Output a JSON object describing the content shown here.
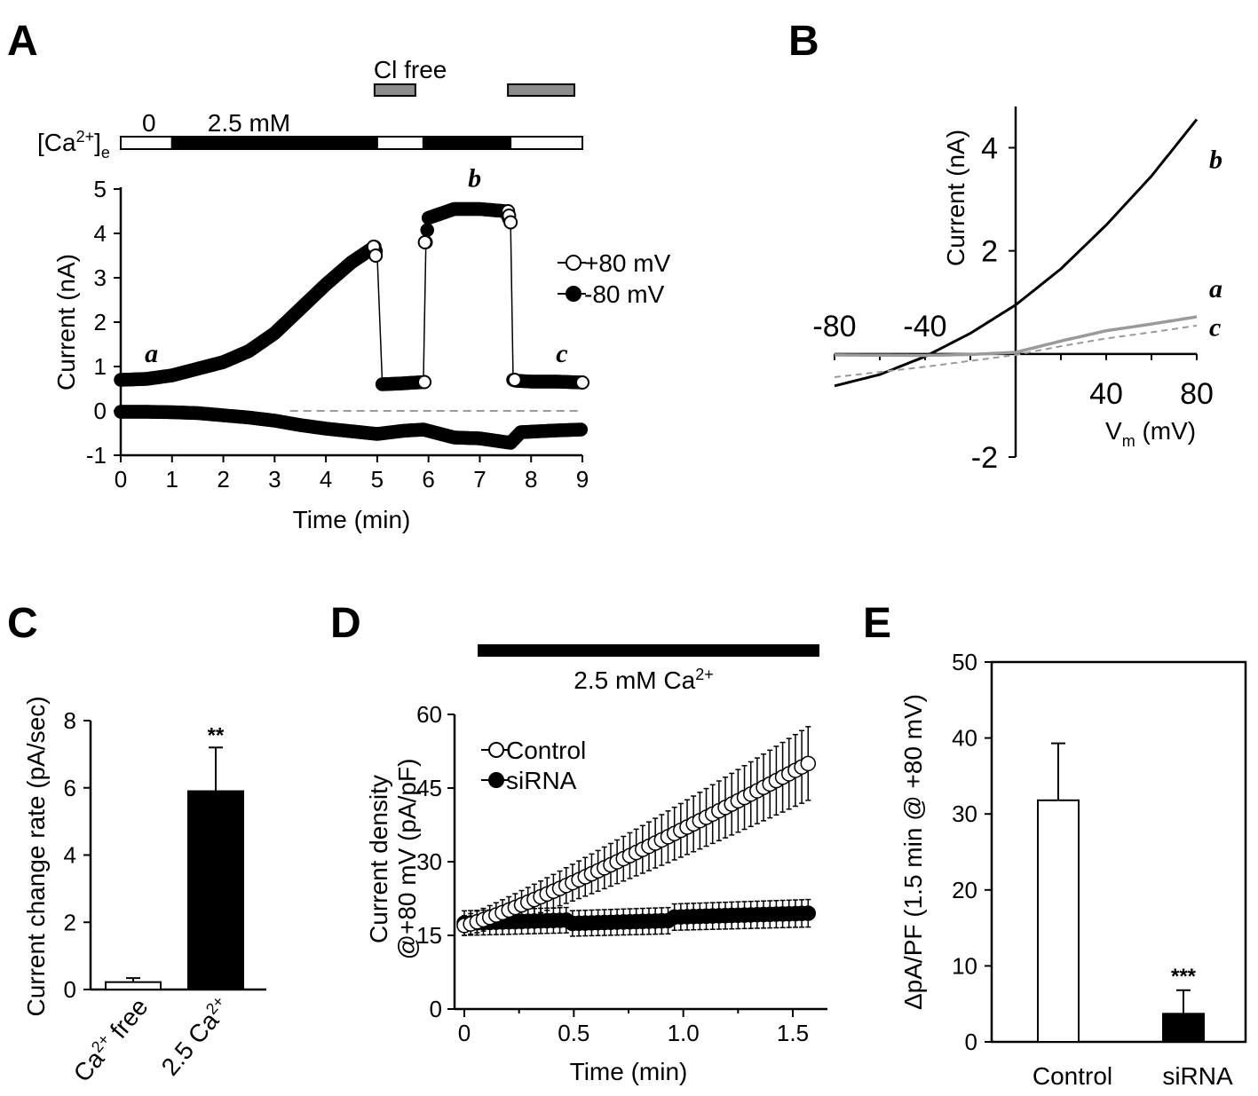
{
  "colors": {
    "open_marker": "#ffffff",
    "filled_marker": "#000000",
    "gray_trace": "#9a9a9a",
    "gray_bar": "#8c8c8c"
  },
  "panel_labels": {
    "a": "A",
    "b": "B",
    "c": "C",
    "d": "D",
    "e": "E"
  },
  "chart_data": [
    {
      "panel": "A",
      "type": "scatter",
      "xlabel": "Time (min)",
      "ylabel": "Current (nA)",
      "xlim": [
        0,
        9
      ],
      "ylim": [
        -1,
        5
      ],
      "xticks": [
        "0",
        "1",
        "2",
        "3",
        "4",
        "5",
        "6",
        "7",
        "8",
        "9"
      ],
      "yticks": [
        "-1",
        "0",
        "1",
        "2",
        "3",
        "4",
        "5"
      ],
      "protocol": {
        "ca_label": "[Ca2+]e",
        "ca_label_main": "[Ca",
        "ca_label_sup": "2+",
        "ca_label_close": "]",
        "ca_label_sub": "e",
        "ca_segments": [
          {
            "label": "0",
            "start": 0,
            "end": 1.0,
            "filled": false
          },
          {
            "label": "2.5 mM",
            "start": 1.0,
            "end": 5.0,
            "filled": true
          },
          {
            "label": "",
            "start": 5.0,
            "end": 5.9,
            "filled": false
          },
          {
            "label": "",
            "start": 5.9,
            "end": 7.6,
            "filled": true
          },
          {
            "label": "",
            "start": 7.6,
            "end": 9.0,
            "filled": false
          }
        ],
        "cl_label": "Cl  free",
        "cl_segments": [
          {
            "start": 5.0,
            "end": 5.9
          },
          {
            "start": 7.6,
            "end": 9.0
          }
        ]
      },
      "series": [
        {
          "name": "+80 mV",
          "marker": "open",
          "x": [
            0.0,
            0.5,
            1.0,
            1.5,
            2.0,
            2.5,
            3.0,
            3.5,
            4.0,
            4.5,
            4.95,
            5.0,
            5.1,
            5.5,
            5.9,
            5.95,
            6.0,
            6.5,
            7.0,
            7.5,
            7.6,
            7.65,
            7.7,
            8.0,
            8.5,
            9.0
          ],
          "y": [
            0.7,
            0.72,
            0.8,
            0.95,
            1.1,
            1.35,
            1.75,
            2.3,
            2.85,
            3.35,
            3.7,
            3.5,
            0.6,
            0.62,
            0.65,
            3.8,
            4.35,
            4.55,
            4.55,
            4.5,
            4.25,
            0.7,
            0.68,
            0.66,
            0.66,
            0.64
          ]
        },
        {
          "name": "-80 mV",
          "marker": "filled",
          "x": [
            0.0,
            0.5,
            1.0,
            1.5,
            2.0,
            2.5,
            3.0,
            3.5,
            4.0,
            4.5,
            5.0,
            5.5,
            5.9,
            6.5,
            7.0,
            7.6,
            7.8,
            8.5,
            9.0
          ],
          "y": [
            -0.02,
            -0.02,
            -0.03,
            -0.05,
            -0.1,
            -0.15,
            -0.22,
            -0.32,
            -0.4,
            -0.46,
            -0.52,
            -0.45,
            -0.42,
            -0.6,
            -0.62,
            -0.72,
            -0.48,
            -0.44,
            -0.42
          ]
        }
      ],
      "zero_line": {
        "start": 3.3,
        "end": 9.0
      },
      "annotations": [
        {
          "text": "a",
          "x": 0.6,
          "y": 1.1
        },
        {
          "text": "b",
          "x": 6.9,
          "y": 5.05
        },
        {
          "text": "c",
          "x": 8.6,
          "y": 1.1
        }
      ]
    },
    {
      "panel": "B",
      "type": "line",
      "xlabel_main": "V",
      "xlabel_sub": "m",
      "xlabel_unit": " (mV)",
      "ylabel": "Current (nA)",
      "xlim": [
        -80,
        80
      ],
      "ylim": [
        -2,
        4.8
      ],
      "xticks_neg": [
        "-80",
        "-40"
      ],
      "xticks_pos": [
        "40",
        "80"
      ],
      "yticks": [
        "4",
        "2",
        "-2"
      ],
      "series": [
        {
          "name": "b",
          "style": "solid-black",
          "x": [
            -80,
            -60,
            -40,
            -20,
            0,
            20,
            40,
            60,
            80
          ],
          "y": [
            -0.62,
            -0.4,
            -0.05,
            0.4,
            0.95,
            1.65,
            2.5,
            3.45,
            4.55
          ]
        },
        {
          "name": "a",
          "style": "solid-gray",
          "x": [
            -80,
            -40,
            -20,
            0,
            20,
            40,
            60,
            80
          ],
          "y": [
            -0.02,
            -0.03,
            -0.01,
            0.03,
            0.25,
            0.45,
            0.58,
            0.72
          ]
        },
        {
          "name": "c",
          "style": "dashed-gray",
          "x": [
            -80,
            -40,
            0,
            20,
            40,
            60,
            80
          ],
          "y": [
            -0.45,
            -0.25,
            -0.02,
            0.15,
            0.3,
            0.42,
            0.55
          ]
        }
      ],
      "annotations": [
        {
          "text": "b",
          "x": 80,
          "y": 3.6
        },
        {
          "text": "a",
          "x": 80,
          "y": 1.1
        },
        {
          "text": "c",
          "x": 80,
          "y": 0.35
        }
      ]
    },
    {
      "panel": "C",
      "type": "bar",
      "ylabel": "Current change rate (pA/sec)",
      "ylim": [
        0,
        8
      ],
      "yticks": [
        "0",
        "2",
        "4",
        "6",
        "8"
      ],
      "categories": [
        {
          "main": "Ca",
          "sup": "2+",
          "rest": " free"
        },
        {
          "main": "2.5 Ca",
          "sup": "2+",
          "rest": ""
        }
      ],
      "values": [
        0.22,
        5.9
      ],
      "errors": [
        0.12,
        1.3
      ],
      "fills": [
        "open",
        "filled"
      ],
      "significance": [
        "",
        "**"
      ]
    },
    {
      "panel": "D",
      "type": "scatter",
      "xlabel": "Time (min)",
      "ylabel_line1": "Current density",
      "ylabel_line2": "@+80 mV (pA/pF)",
      "xlim": [
        0,
        1.6
      ],
      "ylim": [
        0,
        60
      ],
      "xticks": [
        "0",
        "0.5",
        "1.0",
        "1.5"
      ],
      "yticks": [
        "0",
        "15",
        "30",
        "45",
        "60"
      ],
      "bar_label_main": "2.5 mM Ca",
      "bar_label_sup": "2+",
      "bar_range": [
        0.07,
        1.6
      ],
      "series": [
        {
          "name": "Control",
          "marker": "open",
          "start": 17.0,
          "end": 50.0,
          "err_start": 2.0,
          "err_end": 7.5
        },
        {
          "name": "siRNA",
          "marker": "filled",
          "start": 17.5,
          "end": 19.5,
          "err_start": 2.5,
          "err_end": 2.8
        }
      ],
      "n_points": 55,
      "x_end": 1.57
    },
    {
      "panel": "E",
      "type": "bar",
      "ylabel": "ΔpA/PF (1.5 min @ +80 mV)",
      "ylim": [
        0,
        50
      ],
      "yticks": [
        "0",
        "10",
        "20",
        "30",
        "40",
        "50"
      ],
      "categories": [
        "Control",
        "siRNA"
      ],
      "values": [
        31.8,
        3.7
      ],
      "errors": [
        7.5,
        3.1
      ],
      "fills": [
        "open",
        "filled"
      ],
      "significance": [
        "",
        "***"
      ]
    }
  ]
}
